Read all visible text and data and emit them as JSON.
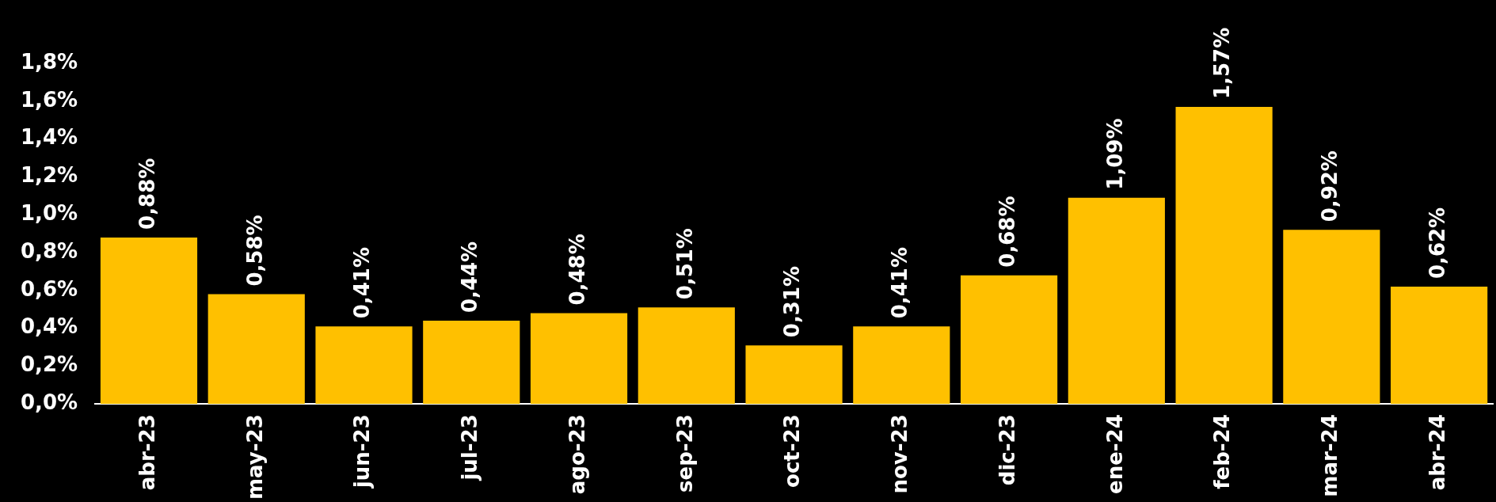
{
  "chart_data": {
    "type": "bar",
    "categories": [
      "abr-23",
      "may-23",
      "jun-23",
      "jul-23",
      "ago-23",
      "sep-23",
      "oct-23",
      "nov-23",
      "dic-23",
      "ene-24",
      "feb-24",
      "mar-24",
      "abr-24"
    ],
    "values": [
      0.88,
      0.58,
      0.41,
      0.44,
      0.48,
      0.51,
      0.31,
      0.41,
      0.68,
      1.09,
      1.57,
      0.92,
      0.62
    ],
    "value_labels": [
      "0,88%",
      "0,58%",
      "0,41%",
      "0,44%",
      "0,48%",
      "0,51%",
      "0,31%",
      "0,41%",
      "0,68%",
      "1,09%",
      "1,57%",
      "0,92%",
      "0,62%"
    ],
    "color": "#ffc000",
    "ylim": [
      0,
      1.8
    ],
    "yticks": [
      {
        "value": 0,
        "label": "0,0%"
      },
      {
        "value": 0.2,
        "label": "0,2%"
      },
      {
        "value": 0.4,
        "label": "0,4%"
      },
      {
        "value": 0.6,
        "label": "0,6%"
      },
      {
        "value": 0.8,
        "label": "0,8%"
      },
      {
        "value": 1.0,
        "label": "1,0%"
      },
      {
        "value": 1.2,
        "label": "1,2%"
      },
      {
        "value": 1.4,
        "label": "1,4%"
      },
      {
        "value": 1.6,
        "label": "1,6%"
      },
      {
        "value": 1.8,
        "label": "1,8%"
      }
    ],
    "grid": false,
    "legend": false
  }
}
